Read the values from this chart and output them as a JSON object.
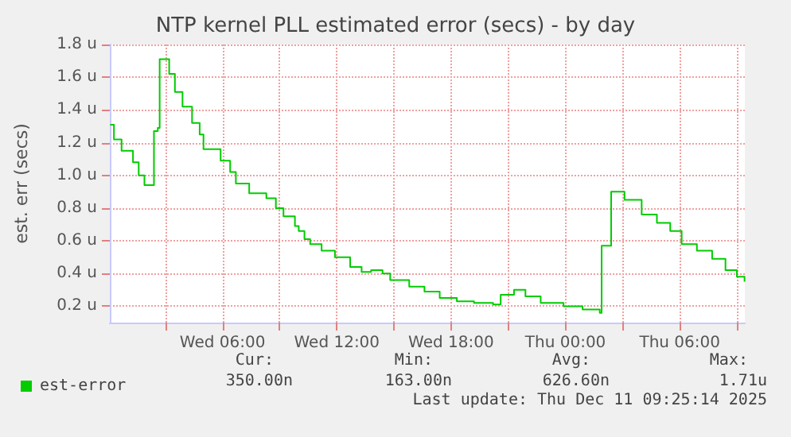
{
  "chart_data": {
    "type": "step",
    "title": "NTP kernel PLL estimated error (secs) - by day",
    "ylabel": "est. err (secs)",
    "x": [
      "2025-12-10T00:06",
      "2025-12-10T00:18",
      "2025-12-10T00:42",
      "2025-12-10T01:18",
      "2025-12-10T01:36",
      "2025-12-10T01:54",
      "2025-12-10T02:24",
      "2025-12-10T02:36",
      "2025-12-10T02:42",
      "2025-12-10T03:12",
      "2025-12-10T03:30",
      "2025-12-10T03:54",
      "2025-12-10T04:24",
      "2025-12-10T04:48",
      "2025-12-10T05:00",
      "2025-12-10T05:54",
      "2025-12-10T06:24",
      "2025-12-10T06:42",
      "2025-12-10T07:24",
      "2025-12-10T08:18",
      "2025-12-10T08:48",
      "2025-12-10T09:12",
      "2025-12-10T09:48",
      "2025-12-10T10:00",
      "2025-12-10T10:18",
      "2025-12-10T10:36",
      "2025-12-10T11:12",
      "2025-12-10T11:54",
      "2025-12-10T12:42",
      "2025-12-10T13:18",
      "2025-12-10T13:48",
      "2025-12-10T14:24",
      "2025-12-10T14:48",
      "2025-12-10T15:18",
      "2025-12-10T15:48",
      "2025-12-10T16:36",
      "2025-12-10T17:24",
      "2025-12-10T18:18",
      "2025-12-10T19:12",
      "2025-12-10T20:12",
      "2025-12-10T20:36",
      "2025-12-10T21:18",
      "2025-12-10T21:54",
      "2025-12-10T22:42",
      "2025-12-10T23:54",
      "2025-12-11T00:54",
      "2025-12-11T01:48",
      "2025-12-11T01:54",
      "2025-12-11T02:24",
      "2025-12-11T03:06",
      "2025-12-11T04:00",
      "2025-12-11T04:48",
      "2025-12-11T05:30",
      "2025-12-11T06:06",
      "2025-12-11T06:54",
      "2025-12-11T07:42",
      "2025-12-11T08:24",
      "2025-12-11T09:00",
      "2025-12-11T09:24"
    ],
    "series": [
      {
        "name": "est-error",
        "color": "#00cc00",
        "values": [
          1.31,
          1.22,
          1.15,
          1.08,
          1.0,
          0.94,
          1.27,
          1.29,
          1.71,
          1.62,
          1.51,
          1.42,
          1.32,
          1.25,
          1.16,
          1.09,
          1.02,
          0.95,
          0.89,
          0.86,
          0.8,
          0.75,
          0.69,
          0.66,
          0.61,
          0.58,
          0.54,
          0.5,
          0.44,
          0.41,
          0.42,
          0.4,
          0.36,
          0.36,
          0.32,
          0.29,
          0.25,
          0.23,
          0.22,
          0.21,
          0.27,
          0.3,
          0.26,
          0.22,
          0.2,
          0.18,
          0.16,
          0.57,
          0.9,
          0.85,
          0.76,
          0.71,
          0.66,
          0.58,
          0.54,
          0.49,
          0.42,
          0.38,
          0.35
        ]
      }
    ],
    "xlim": [
      "2025-12-10T00:05",
      "2025-12-11T09:25"
    ],
    "xticks": [
      {
        "value": "2025-12-10T03:00",
        "label": null
      },
      {
        "value": "2025-12-10T06:00",
        "label": "Wed 06:00"
      },
      {
        "value": "2025-12-10T09:00",
        "label": null
      },
      {
        "value": "2025-12-10T12:00",
        "label": "Wed 12:00"
      },
      {
        "value": "2025-12-10T15:00",
        "label": null
      },
      {
        "value": "2025-12-10T18:00",
        "label": "Wed 18:00"
      },
      {
        "value": "2025-12-10T21:00",
        "label": null
      },
      {
        "value": "2025-12-11T00:00",
        "label": "Thu 00:00"
      },
      {
        "value": "2025-12-11T03:00",
        "label": null
      },
      {
        "value": "2025-12-11T06:00",
        "label": "Thu 06:00"
      },
      {
        "value": "2025-12-11T09:00",
        "label": null
      }
    ],
    "ylim": [
      0.1,
      1.8
    ],
    "yticks": [
      {
        "value": 0.2,
        "label": "0.2 u"
      },
      {
        "value": 0.4,
        "label": "0.4 u"
      },
      {
        "value": 0.6,
        "label": "0.6 u"
      },
      {
        "value": 0.8,
        "label": "0.8 u"
      },
      {
        "value": 1.0,
        "label": "1.0 u"
      },
      {
        "value": 1.2,
        "label": "1.2 u"
      },
      {
        "value": 1.4,
        "label": "1.4 u"
      },
      {
        "value": 1.6,
        "label": "1.6 u"
      },
      {
        "value": 1.8,
        "label": "1.8 u"
      }
    ],
    "grid": true,
    "legend": "bottom left",
    "annotations": [
      "Cur:",
      "Min:",
      "Avg:",
      "Max:",
      "350.00n",
      "163.00n",
      "626.60n",
      "1.71u",
      "Last update: Thu Dec 11 09:25:14 2025"
    ]
  }
}
